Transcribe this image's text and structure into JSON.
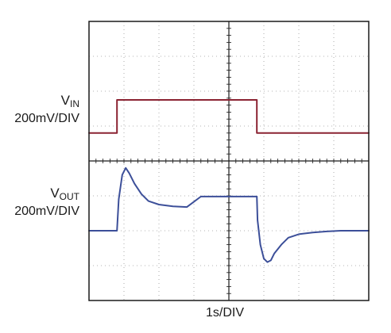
{
  "chart_data": {
    "type": "line",
    "title": "",
    "xlabel": "1s/DIV",
    "grid": true,
    "x_divisions": 8,
    "y_divisions": 8,
    "x_unit": "s",
    "series": [
      {
        "name_main": "V",
        "name_sub": "IN",
        "scale": "200mV/DIV",
        "color": "#8b2332",
        "x": [
          0,
          0.8,
          0.8,
          4.8,
          4.8,
          8
        ],
        "y": [
          4.8,
          4.8,
          5.75,
          5.75,
          4.8,
          4.8
        ]
      },
      {
        "name_main": "V",
        "name_sub": "OUT",
        "scale": "200mV/DIV",
        "color": "#3c4f99",
        "x": [
          0,
          0.8,
          0.85,
          0.95,
          1.05,
          1.15,
          1.3,
          1.5,
          1.7,
          2.0,
          2.4,
          2.8,
          3.2,
          4.8,
          4.82,
          4.9,
          5.0,
          5.1,
          5.2,
          5.3,
          5.5,
          5.7,
          6.0,
          6.4,
          6.8,
          7.2,
          8
        ],
        "y": [
          2.0,
          2.0,
          2.9,
          3.6,
          3.8,
          3.65,
          3.35,
          3.05,
          2.85,
          2.75,
          2.7,
          2.68,
          2.98,
          2.98,
          2.3,
          1.6,
          1.2,
          1.1,
          1.15,
          1.35,
          1.6,
          1.8,
          1.9,
          1.95,
          1.98,
          2.0,
          2.0
        ]
      }
    ]
  }
}
